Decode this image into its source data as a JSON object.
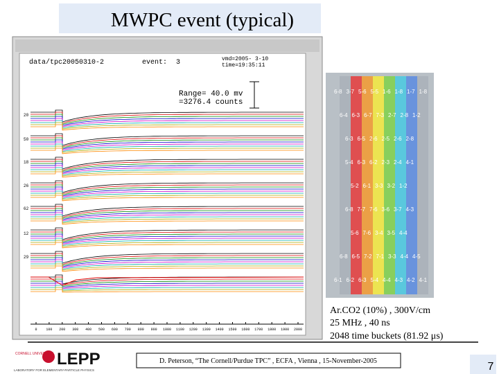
{
  "slide": {
    "title": "MWPC event (typical)",
    "screenshot": {
      "file": "data/tpc20050310-2",
      "event_label": "event:",
      "event": "3",
      "date": "vmd=2005- 3-10",
      "time": "time=19:35:11",
      "range": "Range=  40.0 mv",
      "counts": "=3276.4 counts",
      "row_labels": [
        "20",
        "50",
        "18",
        "26",
        "62",
        "12",
        "29"
      ],
      "x_labels": [
        "0",
        "100",
        "200",
        "300",
        "400",
        "500",
        "600",
        "700",
        "800",
        "900",
        "1000",
        "1100",
        "1200",
        "1300",
        "1400",
        "1500",
        "1600",
        "1700",
        "1800",
        "1900",
        "2000"
      ]
    },
    "pads": {
      "rows": [
        [
          "6-8",
          "3-7",
          "5-6",
          "5-5",
          "1-6",
          "1-8",
          "1-7",
          "1-8"
        ],
        [
          "6-4",
          "6-3",
          "6-7",
          "7-3",
          "2-7",
          "2-8",
          "1-2"
        ],
        [
          "6-3",
          "6-5",
          "2-6",
          "2-5",
          "2-6",
          "2-8"
        ],
        [
          "5-4",
          "6-3",
          "6-2",
          "2-3",
          "2-4",
          "4-1"
        ],
        [
          "5-2",
          "6-1",
          "3-3",
          "3-2",
          "1-2"
        ],
        [
          "6-8",
          "7-7",
          "7-6",
          "3-6",
          "3-7",
          "4-3"
        ],
        [
          "5-6",
          "7-6",
          "3-4",
          "3-5",
          "4-4"
        ],
        [
          "6-8",
          "6-5",
          "7-2",
          "7-1",
          "3-3",
          "4-4",
          "4-5"
        ],
        [
          "6-1",
          "6-2",
          "6-3",
          "5-4",
          "4-4",
          "4-3",
          "4-2",
          "4-1"
        ]
      ]
    },
    "notes": [
      "Ar.CO2 (10%) , 300V/cm",
      "25 MHz , 40 ns",
      "2048 time buckets  (81.92 μs)"
    ],
    "footer": "D. Peterson, “The Cornell/Purdue TPC” , ECFA , Vienna , 15-November-2005",
    "logo": {
      "university": "CORNELL UNIVERSITY",
      "name": "LEPP",
      "subtitle": "LABORATORY FOR ELEMENTARY-PARTICLE PHYSICS"
    },
    "page_number": "7"
  }
}
